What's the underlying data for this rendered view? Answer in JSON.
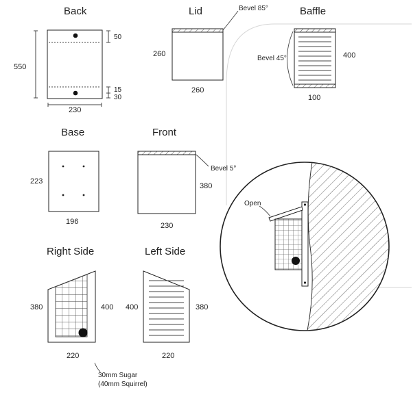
{
  "labels": {
    "back": "Back",
    "lid": "Lid",
    "baffle": "Baffle",
    "base": "Base",
    "front": "Front",
    "right_side": "Right Side",
    "left_side": "Left Side"
  },
  "dimensions": {
    "back_height": "550",
    "back_width": "230",
    "back_top_offset": "50",
    "back_bottom_offset_a": "15",
    "back_bottom_offset_b": "30",
    "lid_height": "260",
    "lid_width": "260",
    "baffle_height": "400",
    "baffle_width": "100",
    "base_height": "223",
    "base_width": "196",
    "front_height": "380",
    "front_width": "230",
    "right_left_height": "380",
    "right_right_height": "400",
    "right_width": "220",
    "left_left_height": "400",
    "left_right_height": "380",
    "left_width": "220"
  },
  "notes": {
    "lid_bevel": "Bevel 85°",
    "baffle_bevel": "Bevel 45°",
    "front_bevel": "Bevel 5°",
    "open": "Open",
    "hole_line1": "30mm Sugar",
    "hole_line2": "(40mm Squirrel)"
  }
}
